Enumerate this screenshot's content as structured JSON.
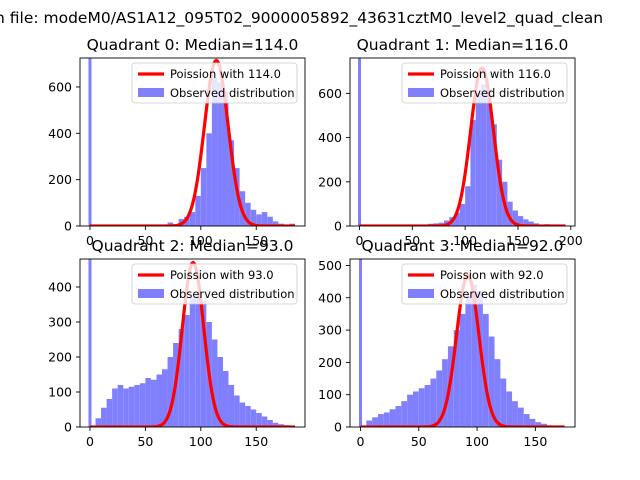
{
  "figure": {
    "suptitle": "n file: modeM0/AS1A12_095T02_9000005892_43631cztM0_level2_quad_clean"
  },
  "colors": {
    "hist": "#8080ff",
    "curve": "#ff0000",
    "axis": "#000000"
  },
  "chart_data": [
    {
      "type": "bar",
      "title": "Quadrant 0: Median=114.0",
      "median": 114.0,
      "curve_peak": 715,
      "xlim": [
        -9,
        194
      ],
      "ylim": [
        0,
        725
      ],
      "xticks": [
        0,
        50,
        100,
        150
      ],
      "yticks": [
        0,
        200,
        400,
        600
      ],
      "spike": {
        "x": 0,
        "value": 725
      },
      "legend": {
        "position": "upper right",
        "line_label": "Poission with 114.0",
        "bar_label": "Observed distribution"
      },
      "bins": [
        {
          "x": 70,
          "v": 15
        },
        {
          "x": 75,
          "v": 8
        },
        {
          "x": 80,
          "v": 30
        },
        {
          "x": 85,
          "v": 40
        },
        {
          "x": 90,
          "v": 60
        },
        {
          "x": 95,
          "v": 130
        },
        {
          "x": 100,
          "v": 250
        },
        {
          "x": 105,
          "v": 400
        },
        {
          "x": 110,
          "v": 640
        },
        {
          "x": 115,
          "v": 620
        },
        {
          "x": 120,
          "v": 580
        },
        {
          "x": 125,
          "v": 370
        },
        {
          "x": 130,
          "v": 250
        },
        {
          "x": 135,
          "v": 150
        },
        {
          "x": 140,
          "v": 100
        },
        {
          "x": 145,
          "v": 70
        },
        {
          "x": 150,
          "v": 50
        },
        {
          "x": 155,
          "v": 60
        },
        {
          "x": 160,
          "v": 40
        },
        {
          "x": 165,
          "v": 20
        },
        {
          "x": 170,
          "v": 10
        },
        {
          "x": 180,
          "v": 10
        }
      ]
    },
    {
      "type": "bar",
      "title": "Quadrant 1: Median=116.0",
      "median": 116.0,
      "curve_peak": 715,
      "xlim": [
        -9,
        204
      ],
      "ylim": [
        0,
        760
      ],
      "xticks": [
        0,
        50,
        100,
        150,
        200
      ],
      "yticks": [
        0,
        200,
        400,
        600
      ],
      "spike": {
        "x": 0,
        "value": 760
      },
      "legend": {
        "position": "upper right",
        "line_label": "Poission with 116.0",
        "bar_label": "Observed distribution"
      },
      "bins": [
        {
          "x": 65,
          "v": 10
        },
        {
          "x": 70,
          "v": 12
        },
        {
          "x": 75,
          "v": 15
        },
        {
          "x": 80,
          "v": 25
        },
        {
          "x": 85,
          "v": 40
        },
        {
          "x": 90,
          "v": 60
        },
        {
          "x": 95,
          "v": 100
        },
        {
          "x": 100,
          "v": 180
        },
        {
          "x": 105,
          "v": 480
        },
        {
          "x": 110,
          "v": 600
        },
        {
          "x": 115,
          "v": 640
        },
        {
          "x": 120,
          "v": 620
        },
        {
          "x": 125,
          "v": 460
        },
        {
          "x": 130,
          "v": 300
        },
        {
          "x": 135,
          "v": 200
        },
        {
          "x": 140,
          "v": 110
        },
        {
          "x": 145,
          "v": 70
        },
        {
          "x": 150,
          "v": 45
        },
        {
          "x": 155,
          "v": 30
        },
        {
          "x": 160,
          "v": 20
        },
        {
          "x": 165,
          "v": 12
        },
        {
          "x": 175,
          "v": 8
        }
      ]
    },
    {
      "type": "bar",
      "title": "Quadrant 2: Median=93.0",
      "median": 93.0,
      "curve_peak": 470,
      "xlim": [
        -9,
        194
      ],
      "ylim": [
        0,
        480
      ],
      "xticks": [
        0,
        50,
        100,
        150
      ],
      "yticks": [
        0,
        100,
        200,
        300,
        400
      ],
      "spike": {
        "x": 0,
        "value": 480
      },
      "legend": {
        "position": "upper right",
        "line_label": "Poission with 93.0",
        "bar_label": "Observed distribution"
      },
      "bins": [
        {
          "x": 5,
          "v": 25
        },
        {
          "x": 10,
          "v": 55
        },
        {
          "x": 15,
          "v": 80
        },
        {
          "x": 20,
          "v": 110
        },
        {
          "x": 25,
          "v": 120
        },
        {
          "x": 30,
          "v": 110
        },
        {
          "x": 35,
          "v": 115
        },
        {
          "x": 40,
          "v": 120
        },
        {
          "x": 45,
          "v": 125
        },
        {
          "x": 50,
          "v": 140
        },
        {
          "x": 55,
          "v": 135
        },
        {
          "x": 60,
          "v": 150
        },
        {
          "x": 65,
          "v": 165
        },
        {
          "x": 70,
          "v": 200
        },
        {
          "x": 75,
          "v": 240
        },
        {
          "x": 80,
          "v": 280
        },
        {
          "x": 85,
          "v": 320
        },
        {
          "x": 90,
          "v": 370
        },
        {
          "x": 95,
          "v": 380
        },
        {
          "x": 100,
          "v": 360
        },
        {
          "x": 105,
          "v": 300
        },
        {
          "x": 110,
          "v": 250
        },
        {
          "x": 115,
          "v": 200
        },
        {
          "x": 120,
          "v": 160
        },
        {
          "x": 125,
          "v": 120
        },
        {
          "x": 130,
          "v": 90
        },
        {
          "x": 135,
          "v": 70
        },
        {
          "x": 140,
          "v": 60
        },
        {
          "x": 145,
          "v": 50
        },
        {
          "x": 150,
          "v": 40
        },
        {
          "x": 155,
          "v": 30
        },
        {
          "x": 160,
          "v": 20
        },
        {
          "x": 165,
          "v": 12
        },
        {
          "x": 170,
          "v": 8
        },
        {
          "x": 175,
          "v": 5
        },
        {
          "x": 180,
          "v": 3
        }
      ]
    },
    {
      "type": "bar",
      "title": "Quadrant 3: Median=92.0",
      "median": 92.0,
      "curve_peak": 470,
      "xlim": [
        -9,
        184
      ],
      "ylim": [
        0,
        520
      ],
      "xticks": [
        0,
        50,
        100,
        150
      ],
      "yticks": [
        0,
        100,
        200,
        300,
        400,
        500
      ],
      "spike": {
        "x": 0,
        "value": 520
      },
      "legend": {
        "position": "upper right",
        "line_label": "Poission with 92.0",
        "bar_label": "Observed distribution"
      },
      "bins": [
        {
          "x": 5,
          "v": 20
        },
        {
          "x": 10,
          "v": 30
        },
        {
          "x": 15,
          "v": 40
        },
        {
          "x": 20,
          "v": 45
        },
        {
          "x": 25,
          "v": 55
        },
        {
          "x": 30,
          "v": 65
        },
        {
          "x": 35,
          "v": 80
        },
        {
          "x": 40,
          "v": 100
        },
        {
          "x": 45,
          "v": 110
        },
        {
          "x": 50,
          "v": 120
        },
        {
          "x": 55,
          "v": 130
        },
        {
          "x": 60,
          "v": 150
        },
        {
          "x": 65,
          "v": 175
        },
        {
          "x": 70,
          "v": 210
        },
        {
          "x": 75,
          "v": 250
        },
        {
          "x": 80,
          "v": 300
        },
        {
          "x": 85,
          "v": 350
        },
        {
          "x": 90,
          "v": 410
        },
        {
          "x": 95,
          "v": 440
        },
        {
          "x": 100,
          "v": 420
        },
        {
          "x": 105,
          "v": 350
        },
        {
          "x": 110,
          "v": 280
        },
        {
          "x": 115,
          "v": 210
        },
        {
          "x": 120,
          "v": 150
        },
        {
          "x": 125,
          "v": 110
        },
        {
          "x": 130,
          "v": 80
        },
        {
          "x": 135,
          "v": 60
        },
        {
          "x": 140,
          "v": 40
        },
        {
          "x": 145,
          "v": 25
        },
        {
          "x": 150,
          "v": 15
        },
        {
          "x": 155,
          "v": 10
        },
        {
          "x": 160,
          "v": 5
        }
      ]
    }
  ]
}
